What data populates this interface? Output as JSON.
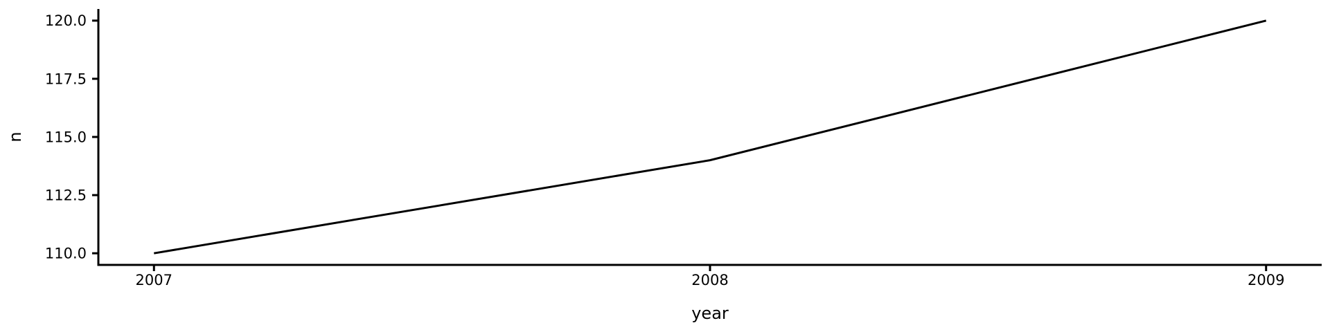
{
  "chart_data": {
    "type": "line",
    "xlabel": "year",
    "ylabel": "n",
    "x": [
      2007,
      2008,
      2009
    ],
    "series": [
      {
        "name": "n",
        "values": [
          110,
          114,
          120
        ]
      }
    ],
    "x_ticks": {
      "values": [
        2007,
        2008,
        2009
      ],
      "labels": [
        "2007",
        "2008",
        "2009"
      ]
    },
    "y_ticks": {
      "values": [
        110.0,
        112.5,
        115.0,
        117.5,
        120.0
      ],
      "labels": [
        "110.0",
        "112.5",
        "115.0",
        "117.5",
        "120.0"
      ]
    },
    "xlim": [
      2006.9,
      2009.1
    ],
    "ylim": [
      109.5,
      120.5
    ],
    "grid": false,
    "legend": "none",
    "background_color": "#ffffff",
    "line_color": "#000000",
    "axis_color": "#000000",
    "tick_label_color": "#000000"
  }
}
